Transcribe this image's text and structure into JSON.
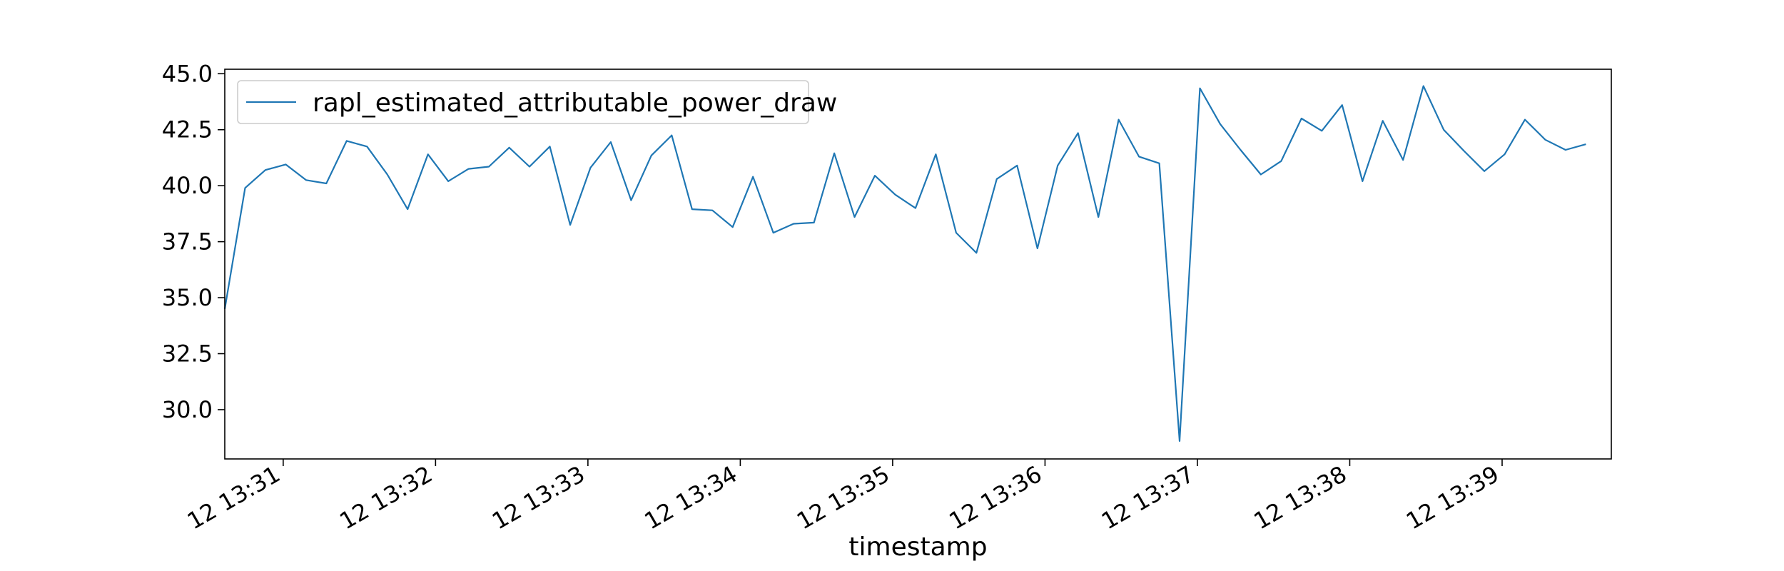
{
  "chart_data": {
    "type": "line",
    "title": "",
    "xlabel": "timestamp",
    "ylabel": "",
    "x_start": "2024-01-12 13:30:37",
    "x_step_seconds": 8,
    "xlim": [
      "2024-01-12 13:30:37",
      "2024-01-12 13:39:43"
    ],
    "ylim": [
      27.8,
      45.2
    ],
    "grid": false,
    "legend_position": "top-left",
    "x_ticks": [
      {
        "value": "2024-01-12 13:31:00",
        "label": "12 13:31"
      },
      {
        "value": "2024-01-12 13:32:00",
        "label": "12 13:32"
      },
      {
        "value": "2024-01-12 13:33:00",
        "label": "12 13:33"
      },
      {
        "value": "2024-01-12 13:34:00",
        "label": "12 13:34"
      },
      {
        "value": "2024-01-12 13:35:00",
        "label": "12 13:35"
      },
      {
        "value": "2024-01-12 13:36:00",
        "label": "12 13:36"
      },
      {
        "value": "2024-01-12 13:37:00",
        "label": "12 13:37"
      },
      {
        "value": "2024-01-12 13:38:00",
        "label": "12 13:38"
      },
      {
        "value": "2024-01-12 13:39:00",
        "label": "12 13:39"
      }
    ],
    "y_ticks": [
      {
        "value": 30.0,
        "label": "30.0"
      },
      {
        "value": 32.5,
        "label": "32.5"
      },
      {
        "value": 35.0,
        "label": "35.0"
      },
      {
        "value": 37.5,
        "label": "37.5"
      },
      {
        "value": 40.0,
        "label": "40.0"
      },
      {
        "value": 42.5,
        "label": "42.5"
      },
      {
        "value": 45.0,
        "label": "45.0"
      }
    ],
    "series": [
      {
        "name": "rapl_estimated_attributable_power_draw",
        "color": "#1f77b4",
        "values": [
          34.5,
          39.9,
          40.7,
          40.95,
          40.25,
          40.1,
          42.0,
          41.75,
          40.5,
          38.95,
          41.4,
          40.2,
          40.75,
          40.85,
          41.7,
          40.85,
          41.75,
          38.25,
          40.8,
          41.95,
          39.35,
          41.35,
          42.25,
          38.95,
          38.9,
          38.15,
          40.4,
          37.9,
          38.3,
          38.35,
          41.45,
          38.6,
          40.45,
          39.6,
          39.0,
          41.4,
          37.9,
          37.0,
          40.3,
          40.9,
          37.2,
          40.9,
          42.35,
          38.6,
          42.95,
          41.3,
          41.0,
          28.6,
          44.35,
          42.75,
          41.6,
          40.5,
          41.1,
          43.0,
          42.45,
          43.6,
          40.2,
          42.9,
          41.15,
          44.45,
          42.5,
          41.55,
          40.65,
          41.4,
          42.95,
          42.05,
          41.6,
          41.85
        ]
      }
    ]
  }
}
